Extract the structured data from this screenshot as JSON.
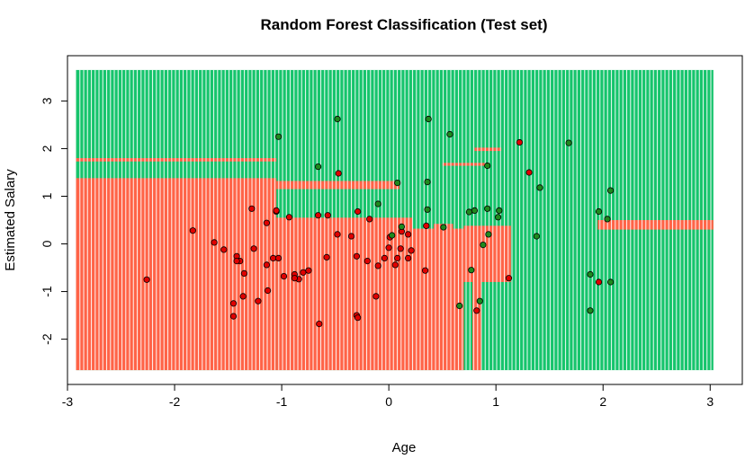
{
  "chart_data": {
    "type": "scatter",
    "title": "Random Forest Classification (Test set)",
    "xlabel": "Age",
    "ylabel": "Estimated Salary",
    "xlim": [
      -3.0,
      3.3
    ],
    "ylim": [
      -2.95,
      3.95
    ],
    "x_ticks": [
      -3,
      -2,
      -1,
      0,
      1,
      2,
      3
    ],
    "y_ticks": [
      -2,
      -1,
      0,
      1,
      2,
      3
    ],
    "x_tick_labels": [
      "-3",
      "-2",
      "-1",
      "0",
      "1",
      "2",
      "3"
    ],
    "y_tick_labels": [
      "-2",
      "-1",
      "0",
      "1",
      "2",
      "3"
    ],
    "grid": false,
    "grid_extent": {
      "x": [
        -2.92,
        3.03
      ],
      "y": [
        -2.65,
        3.65
      ]
    },
    "colors": {
      "class0_region": "#ff6347",
      "class1_region": "#16c46c",
      "class0_point": "#e00000",
      "class1_point": "#1e8a1e",
      "point_outline": "#000000"
    },
    "region_patches": [
      {
        "class": 0,
        "x": [
          -2.92,
          -1.05
        ],
        "y": [
          -2.65,
          1.38
        ]
      },
      {
        "class": 0,
        "x": [
          -1.05,
          0.22
        ],
        "y": [
          -2.65,
          0.55
        ]
      },
      {
        "class": 0,
        "x": [
          0.22,
          0.7
        ],
        "y": [
          -2.65,
          0.32
        ]
      },
      {
        "class": 0,
        "x": [
          0.7,
          1.14
        ],
        "y": [
          -0.8,
          0.38
        ]
      },
      {
        "class": 0,
        "x": [
          -1.05,
          0.1
        ],
        "y": [
          1.15,
          1.32
        ]
      },
      {
        "class": 0,
        "x": [
          -2.92,
          -1.05
        ],
        "y": [
          1.73,
          1.8
        ]
      },
      {
        "class": 0,
        "x": [
          0.5,
          0.9
        ],
        "y": [
          1.64,
          1.7
        ]
      },
      {
        "class": 0,
        "x": [
          0.8,
          1.05
        ],
        "y": [
          1.95,
          2.02
        ]
      },
      {
        "class": 0,
        "x": [
          1.95,
          3.03
        ],
        "y": [
          0.3,
          0.5
        ]
      },
      {
        "class": 0,
        "x": [
          0.78,
          0.86
        ],
        "y": [
          -2.65,
          -0.55
        ]
      },
      {
        "class": 0,
        "x": [
          0.42,
          0.6
        ],
        "y": [
          0.2,
          0.42
        ]
      }
    ],
    "series": [
      {
        "class": 0,
        "x": [
          -2.26,
          -1.83,
          -1.63,
          -1.54,
          -1.42,
          -1.39,
          -1.28,
          -1.26,
          -1.14,
          -1.08,
          -1.03,
          -0.98,
          -0.88,
          -0.84,
          -0.75,
          -0.66,
          -0.58,
          -0.35,
          -0.29,
          -0.18,
          -0.1,
          0.01,
          0.06,
          0.11,
          0.21,
          -1.42,
          -1.35,
          -1.13,
          -1.05,
          -0.93,
          -0.88,
          -0.8,
          -0.47,
          -0.3,
          -0.2,
          -0.04,
          0.08,
          0.12,
          0.18,
          0.34,
          -1.14,
          -1.05,
          -0.57,
          -0.3,
          0.0,
          0.18,
          -0.12,
          0.35,
          -1.36,
          -1.22,
          -1.45,
          -1.45,
          0.82,
          1.22,
          1.31,
          1.96,
          1.12,
          -0.65,
          -0.29,
          -0.48
        ],
        "y": [
          -0.75,
          0.28,
          0.03,
          -0.12,
          -0.26,
          -0.36,
          0.74,
          -0.1,
          -0.44,
          -0.3,
          -0.3,
          -0.68,
          -0.64,
          -0.74,
          -0.56,
          0.6,
          -0.28,
          0.16,
          0.68,
          0.52,
          -0.46,
          0.14,
          -0.44,
          -0.1,
          -0.14,
          -0.36,
          -0.62,
          -0.98,
          0.68,
          0.56,
          -0.72,
          -0.6,
          1.48,
          -0.26,
          -0.36,
          -0.3,
          -0.3,
          0.26,
          -0.3,
          -0.56,
          0.44,
          0.7,
          0.6,
          -1.5,
          -0.08,
          0.2,
          -1.1,
          0.38,
          -1.1,
          -1.2,
          -1.25,
          -1.52,
          -1.4,
          2.13,
          1.5,
          -0.8,
          -0.72,
          -1.68,
          -1.55,
          0.2
        ],
        "name": ""
      },
      {
        "class": 1,
        "x": [
          -0.48,
          0.37,
          0.57,
          1.68,
          2.07,
          1.41,
          1.38,
          2.04,
          1.96,
          0.92,
          0.92,
          0.8,
          0.93,
          0.85,
          1.02,
          0.36,
          0.08,
          -0.1,
          -1.03,
          -0.66,
          0.03,
          0.51,
          0.75,
          0.66,
          0.77,
          1.03,
          1.88,
          1.88,
          2.07,
          0.88,
          0.36,
          0.12
        ],
        "y": [
          2.62,
          2.62,
          2.3,
          2.12,
          1.12,
          1.18,
          0.16,
          0.52,
          0.68,
          1.64,
          0.74,
          0.7,
          0.2,
          -1.2,
          0.56,
          1.3,
          1.28,
          0.84,
          2.25,
          1.62,
          0.18,
          0.35,
          0.67,
          -1.3,
          -0.55,
          0.7,
          -0.64,
          -1.4,
          -0.8,
          -0.02,
          0.72,
          0.36
        ],
        "name": ""
      }
    ]
  }
}
